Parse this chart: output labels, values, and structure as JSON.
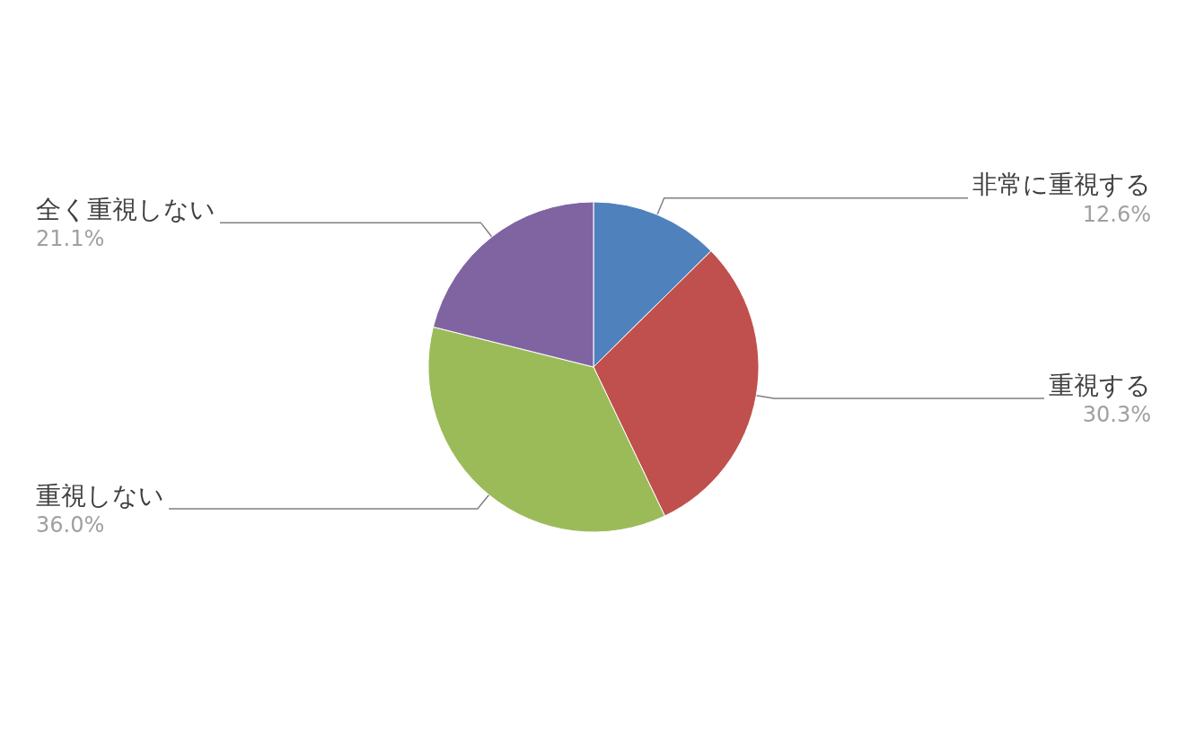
{
  "chart_data": {
    "type": "pie",
    "categories": [
      "非常に重視する",
      "重視する",
      "重視しない",
      "全く重視しない"
    ],
    "values": [
      12.6,
      30.3,
      36.0,
      21.1
    ],
    "value_labels": [
      "12.6%",
      "30.3%",
      "36.0%",
      "21.1%"
    ],
    "colors": [
      "#4f81bd",
      "#c0504d",
      "#9bbb59",
      "#8064a2"
    ],
    "legend": false
  }
}
